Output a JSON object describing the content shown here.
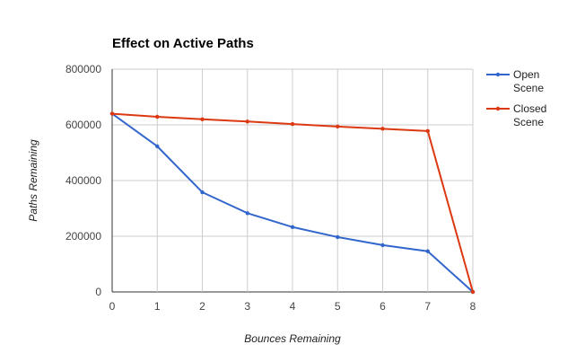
{
  "chart_data": {
    "type": "line",
    "title": "Effect on Active Paths",
    "xlabel": "Bounces Remaining",
    "ylabel": "Paths Remaining",
    "x": [
      0,
      1,
      2,
      3,
      4,
      5,
      6,
      7,
      8
    ],
    "xlim": [
      0,
      8
    ],
    "ylim": [
      0,
      800000
    ],
    "y_ticks": [
      "0",
      "200000",
      "400000",
      "600000",
      "800000"
    ],
    "x_ticks": [
      "0",
      "1",
      "2",
      "3",
      "4",
      "5",
      "6",
      "7",
      "8"
    ],
    "grid": true,
    "legend_position": "right",
    "series": [
      {
        "name_lines": [
          "Open",
          "Scene"
        ],
        "color": "#3366cc",
        "values": [
          640000,
          523000,
          358000,
          283000,
          233000,
          197000,
          168000,
          146000,
          0
        ]
      },
      {
        "name_lines": [
          "Closed",
          "Scene"
        ],
        "color": "#dc3912",
        "values": [
          640000,
          629000,
          620000,
          612000,
          603000,
          594000,
          586000,
          578000,
          0
        ]
      }
    ]
  }
}
